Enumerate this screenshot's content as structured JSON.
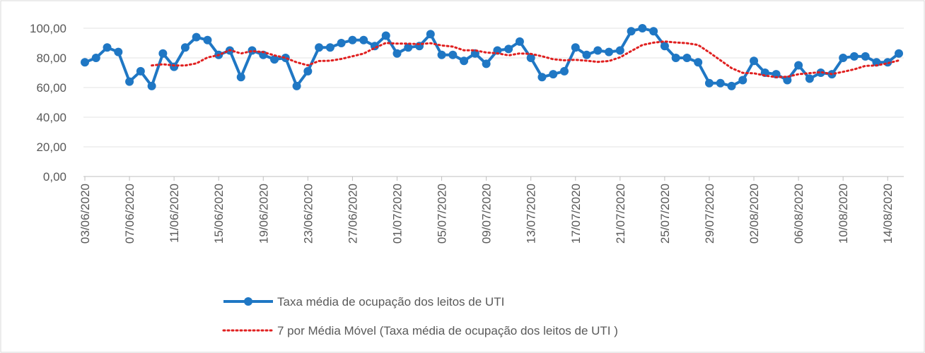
{
  "chart_data": {
    "type": "line",
    "categories": [
      "03/06/2020",
      null,
      null,
      null,
      "07/06/2020",
      null,
      null,
      null,
      "11/06/2020",
      null,
      null,
      null,
      "15/06/2020",
      null,
      null,
      null,
      "19/06/2020",
      null,
      null,
      null,
      "23/06/2020",
      null,
      null,
      null,
      "27/06/2020",
      null,
      null,
      null,
      "01/07/2020",
      null,
      null,
      null,
      "05/07/2020",
      null,
      null,
      null,
      "09/07/2020",
      null,
      null,
      null,
      "13/07/2020",
      null,
      null,
      null,
      "17/07/2020",
      null,
      null,
      null,
      "21/07/2020",
      null,
      null,
      null,
      "25/07/2020",
      null,
      null,
      null,
      "29/07/2020",
      null,
      null,
      null,
      "02/08/2020",
      null,
      null,
      null,
      "06/08/2020",
      null,
      null,
      null,
      "10/08/2020",
      null,
      null,
      null,
      "14/08/2020",
      null
    ],
    "series": [
      {
        "name": "Taxa média de ocupação dos leitos de UTI",
        "color": "#1f77c4",
        "style": "solid",
        "markers": true,
        "values": [
          77,
          80,
          87,
          84,
          64,
          71,
          61,
          83,
          74,
          87,
          94,
          92,
          82,
          85,
          67,
          85,
          82,
          79,
          80,
          61,
          71,
          87,
          87,
          90,
          92,
          92,
          88,
          95,
          83,
          87,
          88,
          96,
          82,
          82,
          78,
          83,
          76,
          85,
          86,
          91,
          80,
          67,
          69,
          71,
          87,
          82,
          85,
          84,
          85,
          98,
          100,
          98,
          88,
          80,
          80,
          77,
          63,
          63,
          61,
          65,
          78,
          70,
          69,
          65,
          75,
          66,
          70,
          69,
          80,
          81,
          81,
          77,
          77,
          83
        ]
      },
      {
        "name": "7 por Média Móvel (Taxa média de ocupação dos leitos de UTI )",
        "color": "#e02020",
        "style": "dotted",
        "markers": false,
        "values": [
          null,
          null,
          null,
          null,
          null,
          null,
          74.9,
          75.7,
          74.9,
          74.9,
          76.3,
          80.3,
          81.9,
          85.3,
          83.0,
          84.6,
          83.9,
          81.7,
          80.0,
          77.0,
          75.0,
          77.9,
          78.1,
          79.3,
          81.1,
          82.9,
          86.7,
          90.1,
          89.6,
          89.6,
          89.3,
          89.9,
          88.4,
          87.6,
          85.1,
          85.1,
          83.6,
          83.1,
          81.7,
          83.0,
          82.7,
          81.1,
          79.1,
          78.4,
          78.7,
          78.1,
          77.3,
          77.9,
          80.4,
          84.6,
          88.7,
          90.3,
          91.1,
          90.4,
          89.9,
          88.7,
          83.7,
          78.4,
          73.1,
          69.9,
          69.6,
          68.1,
          67.0,
          67.3,
          69.0,
          69.7,
          70.4,
          69.1,
          70.6,
          72.3,
          74.6,
          74.9,
          76.4,
          78.3
        ]
      }
    ],
    "ylim": [
      0,
      100
    ],
    "yticks": [
      {
        "value": 0,
        "label": "0,00"
      },
      {
        "value": 20,
        "label": "20,00"
      },
      {
        "value": 40,
        "label": "40,00"
      },
      {
        "value": 60,
        "label": "60,00"
      },
      {
        "value": 80,
        "label": "80,00"
      },
      {
        "value": 100,
        "label": "100,00"
      }
    ],
    "grid": true,
    "legend": "bottom"
  }
}
